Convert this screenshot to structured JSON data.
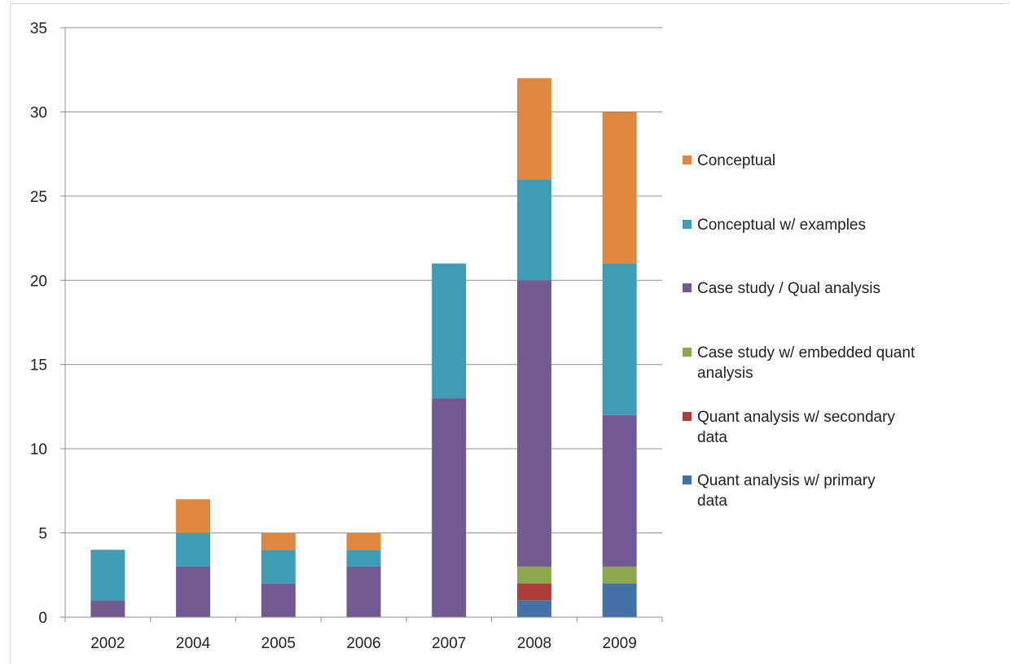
{
  "chart_data": {
    "type": "bar",
    "stacked": true,
    "categories": [
      "2002",
      "2004",
      "2005",
      "2006",
      "2007",
      "2008",
      "2009"
    ],
    "ylim": [
      0,
      35
    ],
    "yticks": [
      0,
      5,
      10,
      15,
      20,
      25,
      30,
      35
    ],
    "grid": "horizontal",
    "legend_position": "right",
    "series": [
      {
        "name": "Quant analysis w/ primary data",
        "color": "#4472a8",
        "values": [
          0,
          0,
          0,
          0,
          0,
          1,
          2
        ]
      },
      {
        "name": "Quant analysis w/ secondary data",
        "color": "#b03c3a",
        "values": [
          0,
          0,
          0,
          0,
          0,
          1,
          0
        ]
      },
      {
        "name": "Case study w/ embedded quant analysis",
        "color": "#8aa84c",
        "values": [
          0,
          0,
          0,
          0,
          0,
          1,
          1
        ]
      },
      {
        "name": "Case study / Qual analysis",
        "color": "#715a94",
        "values": [
          1,
          3,
          2,
          3,
          13,
          17,
          9
        ]
      },
      {
        "name": "Conceptual w/ examples",
        "color": "#3f9cb5",
        "values": [
          3,
          2,
          2,
          1,
          8,
          6,
          9
        ]
      },
      {
        "name": "Conceptual",
        "color": "#df873e",
        "values": [
          0,
          2,
          1,
          1,
          0,
          6,
          9
        ]
      }
    ]
  }
}
